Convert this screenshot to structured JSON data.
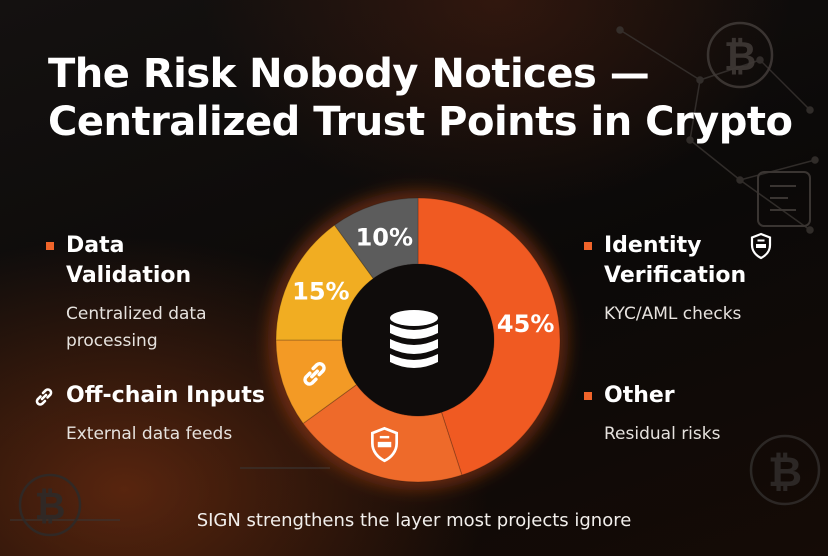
{
  "title": {
    "line1": "The Risk Nobody Notices —",
    "line2": "Centralized Trust Points in Crypto"
  },
  "chart_data": {
    "type": "pie",
    "donut": true,
    "center_icon": "database-icon",
    "slices": [
      {
        "value": 45,
        "label": "45%",
        "color": "#f05a22",
        "icon": ""
      },
      {
        "value": 20,
        "label": "",
        "color": "#ee6a2a",
        "icon": "shield-check-icon"
      },
      {
        "value": 10,
        "label": "",
        "color": "#f39a25",
        "icon": "chain-link-icon"
      },
      {
        "value": 15,
        "label": "15%",
        "color": "#f1ad22",
        "icon": ""
      },
      {
        "value": 10,
        "label": "10%",
        "color": "#5c5c5c",
        "icon": ""
      }
    ],
    "legend": {
      "left": [
        {
          "heading": "Data Validation",
          "desc": "Centralized data processing",
          "marker": "square"
        },
        {
          "heading": "Off-chain Inputs",
          "desc": "External data feeds",
          "marker": "chain-link-icon"
        }
      ],
      "right": [
        {
          "heading": "Identity Verification",
          "desc": "KYC/AML checks",
          "marker": "square",
          "extra_icon": "shield-check-icon"
        },
        {
          "heading": "Other",
          "desc": "Residual risks",
          "marker": "square"
        }
      ]
    }
  },
  "legend_text": {
    "data_validation_1": "Data",
    "data_validation_2": "Validation",
    "data_validation_desc_1": "Centralized data",
    "data_validation_desc_2": "processing",
    "offchain": "Off-chain Inputs",
    "offchain_desc": "External data feeds",
    "identity_1": "Identity",
    "identity_2": "Verification",
    "identity_desc": "KYC/AML checks",
    "other": "Other",
    "other_desc": "Residual risks"
  },
  "footer": "SIGN strengthens the layer most projects ignore",
  "colors": {
    "accent": "#f05a22",
    "amber": "#f1ad22",
    "gray_slice": "#5c5c5c",
    "background": "#0d0b0a"
  }
}
